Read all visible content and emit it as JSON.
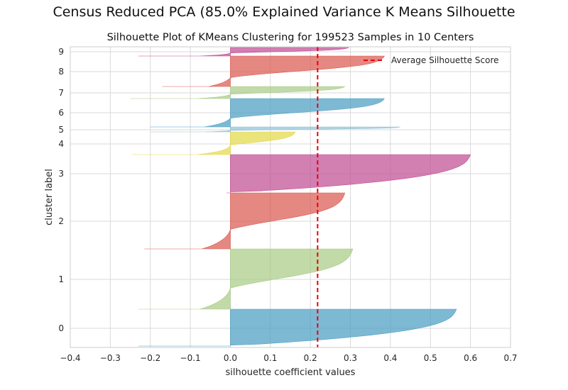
{
  "suptitle": "Census Reduced PCA (85.0% Explained Variance K Means Silhouette",
  "chart_data": {
    "type": "area",
    "title": "Silhouette Plot of KMeans Clustering for 199523 Samples in 10 Centers",
    "xlabel": "silhouette coefficient values",
    "ylabel": "cluster label",
    "xlim": [
      -0.4,
      0.7
    ],
    "xticks": [
      -0.4,
      -0.3,
      -0.2,
      -0.1,
      0.0,
      0.1,
      0.2,
      0.3,
      0.4,
      0.5,
      0.6,
      0.7
    ],
    "xtick_labels": [
      "−0.4",
      "−0.3",
      "−0.2",
      "−0.1",
      "0.0",
      "0.1",
      "0.2",
      "0.3",
      "0.4",
      "0.5",
      "0.6",
      "0.7"
    ],
    "ytick_labels": [
      "0",
      "1",
      "2",
      "3",
      "4",
      "5",
      "6",
      "7",
      "8",
      "9"
    ],
    "grid": true,
    "legend": {
      "position": "top-right",
      "entries": [
        "Average Silhouette Score"
      ]
    },
    "average_silhouette_score": 0.218,
    "clusters": [
      {
        "label": "0",
        "color": "#4c9ec3",
        "min": -0.23,
        "max": 0.565
      },
      {
        "label": "1",
        "color": "#a9cc86",
        "min": -0.23,
        "max": 0.31
      },
      {
        "label": "2",
        "color": "#db5a50",
        "min": -0.215,
        "max": 0.29
      },
      {
        "label": "3",
        "color": "#c14d94",
        "min": -0.01,
        "max": 0.6
      },
      {
        "label": "4",
        "color": "#e3d94a",
        "min": -0.245,
        "max": 0.165
      },
      {
        "label": "5",
        "color": "#90c2d8",
        "min": -0.2,
        "max": 0.43
      },
      {
        "label": "6",
        "color": "#4c9ec3",
        "min": -0.2,
        "max": 0.39
      },
      {
        "label": "7",
        "color": "#a9cc86",
        "min": -0.25,
        "max": 0.29
      },
      {
        "label": "8",
        "color": "#db5a50",
        "min": -0.17,
        "max": 0.39
      },
      {
        "label": "9",
        "color": "#c14d94",
        "min": -0.23,
        "max": 0.3
      }
    ],
    "avg_line_color": "#e8000b"
  }
}
